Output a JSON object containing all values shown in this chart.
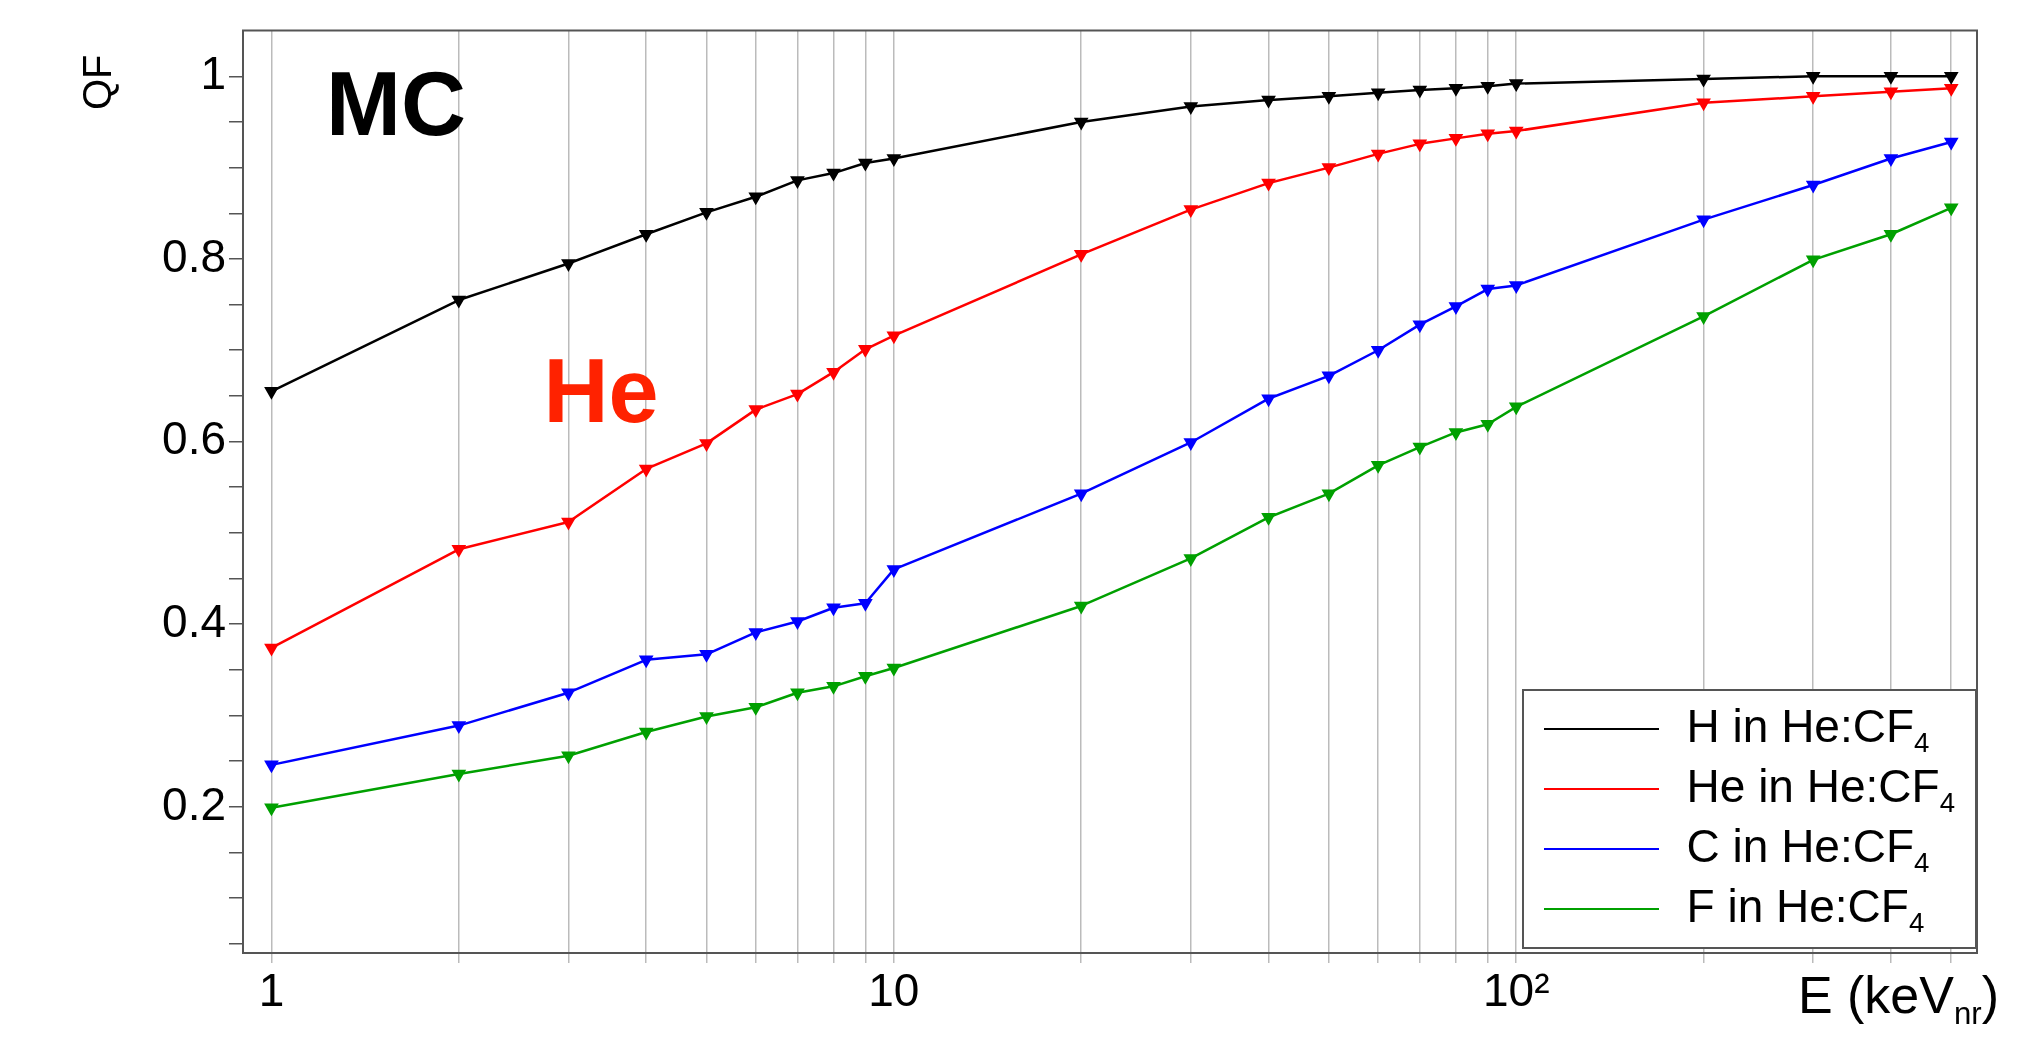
{
  "chart_data": {
    "type": "line",
    "title": "MC",
    "xlabel": "E (keV$_{nr}$)",
    "ylabel": "QF",
    "log": "x",
    "grid": "x",
    "legend": "bottom right",
    "marker": "triangle",
    "line_style": "solid",
    "x": [
      1,
      2,
      3,
      4,
      5,
      6,
      7,
      8,
      9,
      10,
      20,
      30,
      40,
      50,
      60,
      70,
      80,
      90,
      100,
      200,
      300,
      400,
      500
    ],
    "xlim": [
      0.9,
      550
    ],
    "xticks": [
      {
        "value": 1,
        "label": "1"
      },
      {
        "value": 2,
        "label": null
      },
      {
        "value": 3,
        "label": null
      },
      {
        "value": 4,
        "label": null
      },
      {
        "value": 5,
        "label": null
      },
      {
        "value": 6,
        "label": null
      },
      {
        "value": 7,
        "label": null
      },
      {
        "value": 8,
        "label": null
      },
      {
        "value": 9,
        "label": null
      },
      {
        "value": 10,
        "label": "10"
      },
      {
        "value": 20,
        "label": null
      },
      {
        "value": 30,
        "label": null
      },
      {
        "value": 40,
        "label": null
      },
      {
        "value": 50,
        "label": null
      },
      {
        "value": 60,
        "label": null
      },
      {
        "value": 70,
        "label": null
      },
      {
        "value": 80,
        "label": null
      },
      {
        "value": 90,
        "label": null
      },
      {
        "value": 100,
        "label": "10²"
      },
      {
        "value": 200,
        "label": null
      },
      {
        "value": 300,
        "label": null
      },
      {
        "value": 400,
        "label": null
      },
      {
        "value": 500,
        "label": null
      }
    ],
    "ylim": [
      0.04,
      1.05
    ],
    "yticks": [
      {
        "value": 0.05,
        "label": null
      },
      {
        "value": 0.1,
        "label": null
      },
      {
        "value": 0.15,
        "label": null
      },
      0.2,
      {
        "value": 0.25,
        "label": null
      },
      {
        "value": 0.3,
        "label": null
      },
      {
        "value": 0.35,
        "label": null
      },
      0.4,
      {
        "value": 0.45,
        "label": null
      },
      {
        "value": 0.5,
        "label": null
      },
      {
        "value": 0.55,
        "label": null
      },
      0.6,
      {
        "value": 0.65,
        "label": null
      },
      {
        "value": 0.7,
        "label": null
      },
      {
        "value": 0.75,
        "label": null
      },
      0.8,
      {
        "value": 0.85,
        "label": null
      },
      {
        "value": 0.9,
        "label": null
      },
      {
        "value": 0.95,
        "label": null
      },
      1
    ],
    "annotations": [
      "He"
    ],
    "series": [
      {
        "name": "H in He:CF$_{4}$",
        "color": "#000000",
        "values": [
          0.655,
          0.755,
          0.795,
          0.827,
          0.851,
          0.868,
          0.886,
          0.894,
          0.905,
          0.91,
          0.95,
          0.967,
          0.974,
          0.978,
          0.982,
          0.985,
          0.987,
          0.989,
          0.992,
          0.997,
          1.0,
          1.0,
          1.0
        ]
      },
      {
        "name": "He in He:CF$_{4}$",
        "color": "#ff0000",
        "values": [
          0.374,
          0.482,
          0.512,
          0.57,
          0.598,
          0.635,
          0.652,
          0.676,
          0.701,
          0.716,
          0.805,
          0.854,
          0.883,
          0.9,
          0.915,
          0.926,
          0.932,
          0.937,
          0.94,
          0.971,
          0.978,
          0.983,
          0.987
        ]
      },
      {
        "name": "C in He:CF$_{4}$",
        "color": "#0000ff",
        "values": [
          0.246,
          0.289,
          0.325,
          0.361,
          0.367,
          0.391,
          0.403,
          0.418,
          0.423,
          0.46,
          0.543,
          0.599,
          0.647,
          0.672,
          0.7,
          0.728,
          0.748,
          0.767,
          0.771,
          0.843,
          0.881,
          0.91,
          0.928
        ]
      },
      {
        "name": "F in He:CF$_{4}$",
        "color": "#00a000",
        "values": [
          0.199,
          0.236,
          0.256,
          0.282,
          0.299,
          0.309,
          0.325,
          0.332,
          0.343,
          0.352,
          0.42,
          0.472,
          0.517,
          0.543,
          0.574,
          0.594,
          0.61,
          0.619,
          0.638,
          0.737,
          0.799,
          0.827,
          0.856
        ]
      }
    ]
  }
}
